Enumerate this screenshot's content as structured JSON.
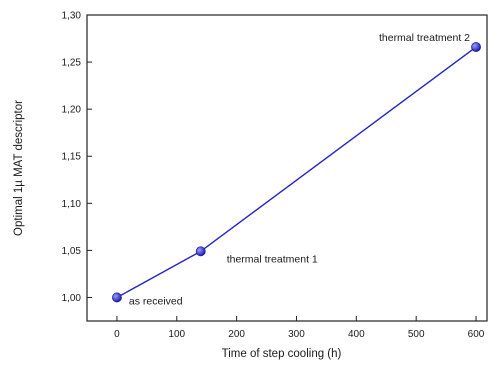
{
  "chart_data": {
    "type": "line",
    "title": "",
    "xlabel": "Time of step cooling (h)",
    "ylabel": "Optimal 1µ MAT descriptor",
    "xlim": [
      -50,
      620
    ],
    "ylim": [
      0.975,
      1.3
    ],
    "xticks": [
      0,
      100,
      200,
      300,
      400,
      500,
      600
    ],
    "xtick_labels": [
      "0",
      "100",
      "200",
      "300",
      "400",
      "500",
      "600"
    ],
    "yticks": [
      1.0,
      1.05,
      1.1,
      1.15,
      1.2,
      1.25,
      1.3
    ],
    "ytick_labels": [
      "1,00",
      "1,05",
      "1,10",
      "1,15",
      "1,20",
      "1,25",
      "1,30"
    ],
    "grid": false,
    "series": [
      {
        "color": "#2424c8",
        "points": [
          {
            "x": 0,
            "y": 1.0,
            "label": "as received"
          },
          {
            "x": 140,
            "y": 1.049,
            "label": "thermal treatment 1"
          },
          {
            "x": 600,
            "y": 1.266,
            "label": "thermal treatment 2"
          }
        ]
      }
    ]
  }
}
